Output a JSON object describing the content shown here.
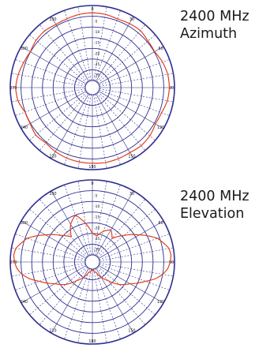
{
  "colors": {
    "grid": "#2e2e8f",
    "trace": "#e0401e",
    "label": "#111111"
  },
  "chart_data": [
    {
      "type": "polar",
      "frequency": "2400 MHz",
      "plane": "Azimuth",
      "angle_unit": "deg",
      "angle_labels": [
        0,
        30,
        60,
        90,
        120,
        150,
        180,
        210,
        240,
        270,
        300,
        330
      ],
      "radial_ticks": [
        -30,
        -25,
        -20,
        -15,
        -10,
        -5
      ],
      "rlim": [
        -35,
        0
      ],
      "grid": true,
      "pattern": {
        "angles": [
          0,
          10,
          20,
          30,
          40,
          50,
          60,
          70,
          80,
          90,
          100,
          110,
          120,
          130,
          140,
          150,
          160,
          170,
          180,
          190,
          200,
          210,
          220,
          230,
          240,
          250,
          260,
          270,
          280,
          290,
          300,
          310,
          320,
          330,
          340,
          350
        ],
        "values": [
          -3.4,
          -3.6,
          -4.2,
          -3.8,
          -3.5,
          -4.5,
          -4.8,
          -3.5,
          -2.6,
          -2.4,
          -2.8,
          -4.0,
          -4.4,
          -3.3,
          -2.9,
          -3.3,
          -3.0,
          -2.8,
          -3.0,
          -3.1,
          -3.3,
          -3.8,
          -4.6,
          -3.8,
          -4.8,
          -4.9,
          -3.0,
          -2.5,
          -3.2,
          -4.2,
          -4.9,
          -4.0,
          -3.7,
          -4.3,
          -4.1,
          -3.6
        ]
      }
    },
    {
      "type": "polar",
      "frequency": "2400 MHz",
      "plane": "Elevation",
      "angle_unit": "deg",
      "angle_labels": [
        0,
        30,
        60,
        90,
        120,
        150,
        180,
        210,
        240,
        270,
        300,
        330
      ],
      "radial_ticks": [
        -30,
        -25,
        -20,
        -15,
        -10,
        -5
      ],
      "rlim": [
        -35,
        0
      ],
      "grid": true,
      "pattern": {
        "angles": [
          0,
          10,
          20,
          30,
          40,
          50,
          60,
          70,
          75,
          80,
          85,
          90,
          95,
          100,
          105,
          110,
          120,
          130,
          140,
          150,
          160,
          170,
          180,
          190,
          200,
          210,
          220,
          230,
          240,
          250,
          255,
          260,
          265,
          270,
          275,
          280,
          285,
          290,
          300,
          310,
          320,
          330,
          340,
          350
        ],
        "values": [
          -25,
          -26,
          -23,
          -21,
          -24,
          -19,
          -13,
          -6,
          -4,
          -2,
          -1.5,
          -2,
          -3,
          -5,
          -8,
          -12,
          -18,
          -22,
          -27,
          -30,
          -33,
          -34,
          -35,
          -34,
          -33,
          -30,
          -27,
          -22,
          -18,
          -12,
          -8,
          -5,
          -3,
          -2,
          -1.5,
          -2,
          -4,
          -6,
          -13,
          -19,
          -23,
          -18,
          -15,
          -20
        ]
      }
    }
  ],
  "captions": {
    "azimuth": {
      "line1": "2400 MHz",
      "line2": "Azimuth"
    },
    "elevation": {
      "line1": "2400 MHz",
      "line2": "Elevation"
    }
  }
}
